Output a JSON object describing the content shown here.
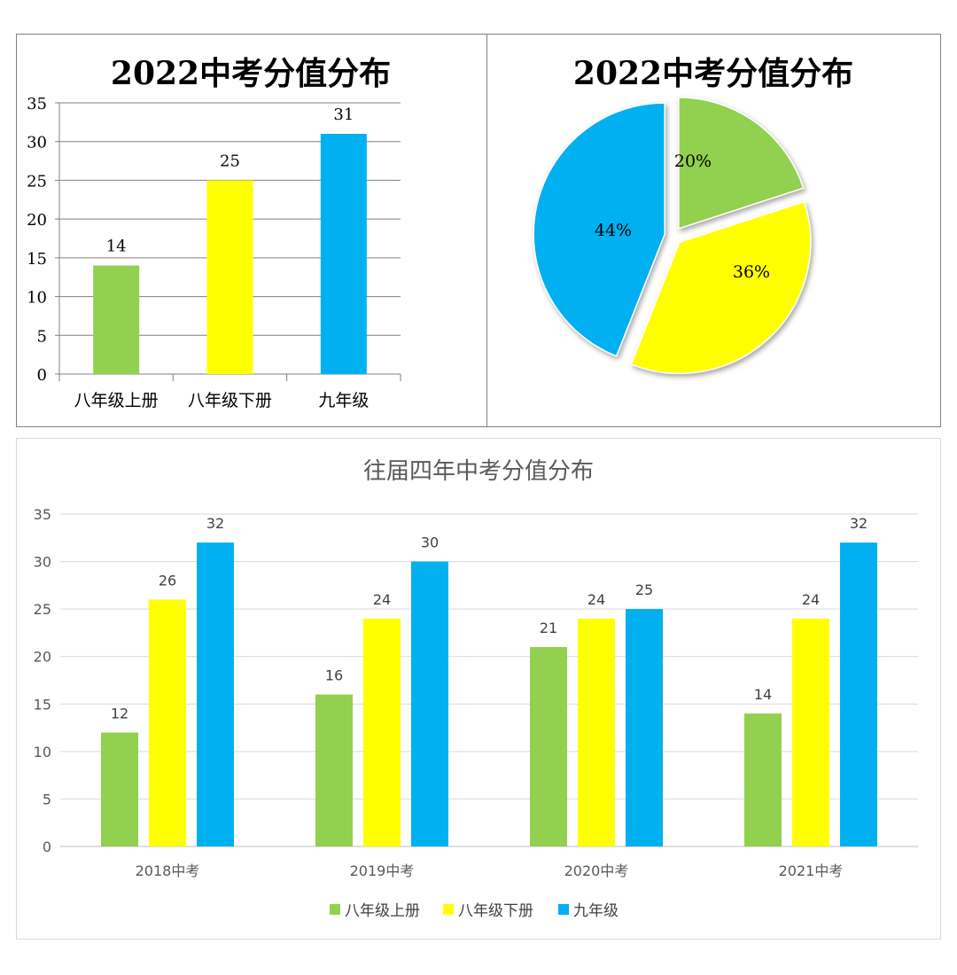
{
  "colors": {
    "green": "#92d050",
    "yellow": "#ffff00",
    "blue": "#00b0f0"
  },
  "chart_data": [
    {
      "type": "bar",
      "title": "2022中考分值分布",
      "categories": [
        "八年级上册",
        "八年级下册",
        "九年级"
      ],
      "values": [
        14,
        25,
        31
      ],
      "value_labels": [
        "14",
        "25",
        "31"
      ],
      "bar_colors": [
        "#92d050",
        "#ffff00",
        "#00b0f0"
      ],
      "ylim": [
        0,
        35
      ],
      "yticks": [
        "0",
        "5",
        "10",
        "15",
        "20",
        "25",
        "30",
        "35"
      ],
      "grid": true,
      "legend": "none"
    },
    {
      "type": "pie",
      "title": "2022中考分值分布",
      "categories": [
        "八年级上册",
        "八年级下册",
        "九年级"
      ],
      "values": [
        20,
        36,
        44
      ],
      "value_labels": [
        "20%",
        "36%",
        "44%"
      ],
      "slice_colors": [
        "#92d050",
        "#ffff00",
        "#00b0f0"
      ],
      "legend": "none"
    },
    {
      "type": "bar",
      "title": "往届四年中考分值分布",
      "categories": [
        "2018中考",
        "2019中考",
        "2020中考",
        "2021中考"
      ],
      "series": [
        {
          "name": "八年级上册",
          "values": [
            12,
            16,
            21,
            14
          ],
          "labels": [
            "12",
            "16",
            "21",
            "14"
          ],
          "color": "#92d050"
        },
        {
          "name": "八年级下册",
          "values": [
            26,
            24,
            24,
            24
          ],
          "labels": [
            "26",
            "24",
            "24",
            "24"
          ],
          "color": "#ffff00"
        },
        {
          "name": "九年级",
          "values": [
            32,
            30,
            25,
            32
          ],
          "labels": [
            "32",
            "30",
            "25",
            "32"
          ],
          "color": "#00b0f0"
        }
      ],
      "ylim": [
        0,
        35
      ],
      "yticks": [
        "0",
        "5",
        "10",
        "15",
        "20",
        "25",
        "30",
        "35"
      ],
      "grid": true,
      "legend": "bottom"
    }
  ]
}
